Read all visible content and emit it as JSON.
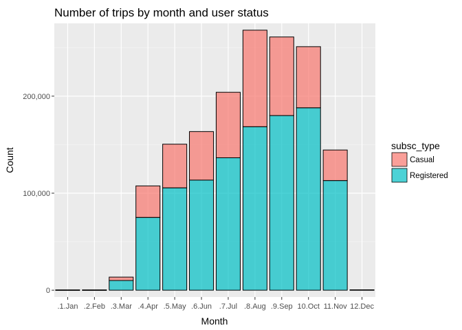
{
  "chart_data": {
    "type": "bar",
    "stacked": true,
    "title": "Number of trips by month and user status",
    "xlabel": "Month",
    "ylabel": "Count",
    "categories": [
      ".1.Jan",
      ".2.Feb",
      ".3.Mar",
      ".4.Apr",
      ".5.May",
      ".6.Jun",
      ".7.Jul",
      ".8.Aug",
      ".9.Sep",
      "10.Oct",
      "11.Nov",
      "12.Dec"
    ],
    "series": [
      {
        "name": "Registered",
        "color": "#00BFC4",
        "values": [
          200,
          200,
          10000,
          75000,
          105500,
          113500,
          136500,
          168500,
          180000,
          188000,
          113000,
          300
        ]
      },
      {
        "name": "Casual",
        "color": "#F8766D",
        "values": [
          100,
          100,
          3500,
          32500,
          45000,
          50000,
          67500,
          99500,
          81000,
          63000,
          31500,
          100
        ]
      }
    ],
    "ylim": [
      -7000,
      275000
    ],
    "y_ticks": [
      0,
      100000,
      200000
    ],
    "y_tick_labels": [
      "0",
      "100,000",
      "200,000"
    ],
    "grid": true,
    "legend": {
      "title": "subsc_type",
      "position": "right",
      "entries": [
        {
          "label": "Casual",
          "color": "#F8766D"
        },
        {
          "label": "Registered",
          "color": "#00BFC4"
        }
      ]
    }
  }
}
